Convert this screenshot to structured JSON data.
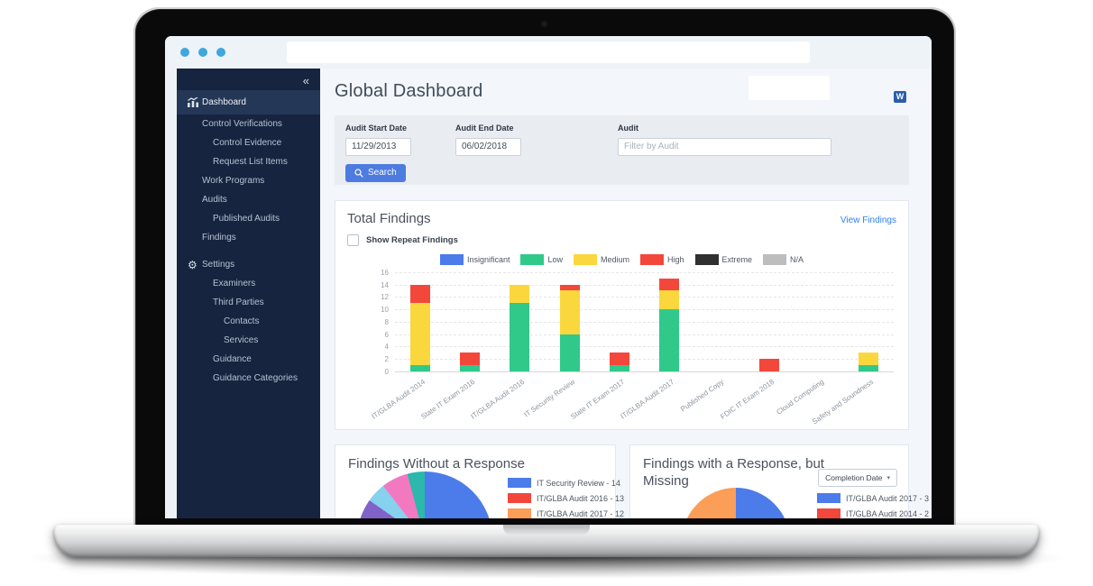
{
  "browser": {
    "address_text": ""
  },
  "sidebar": {
    "collapse_icon": "«",
    "items": [
      {
        "label": "Dashboard",
        "level": 0,
        "icon": "chart",
        "active": true
      },
      {
        "label": "Control Verifications",
        "level": 1
      },
      {
        "label": "Control Evidence",
        "level": 2
      },
      {
        "label": "Request List Items",
        "level": 2
      },
      {
        "label": "Work Programs",
        "level": 1
      },
      {
        "label": "Audits",
        "level": 1
      },
      {
        "label": "Published Audits",
        "level": 2
      },
      {
        "label": "Findings",
        "level": 1
      },
      {
        "label": "Settings",
        "level": 0,
        "icon": "gear",
        "gap": true
      },
      {
        "label": "Examiners",
        "level": 2
      },
      {
        "label": "Third Parties",
        "level": 2
      },
      {
        "label": "Contacts",
        "level": 3
      },
      {
        "label": "Services",
        "level": 3
      },
      {
        "label": "Guidance",
        "level": 2
      },
      {
        "label": "Guidance Categories",
        "level": 2
      }
    ]
  },
  "header": {
    "title": "Global Dashboard",
    "export_icon_label": "W"
  },
  "filters": {
    "start_date": {
      "label": "Audit Start Date",
      "value": "11/29/2013"
    },
    "end_date": {
      "label": "Audit End Date",
      "value": "06/02/2018"
    },
    "audit": {
      "label": "Audit",
      "placeholder": "Filter by Audit"
    },
    "search_label": "Search"
  },
  "total_findings_card": {
    "view_link": "View Findings",
    "show_repeat_label": "Show Repeat Findings"
  },
  "chart_data": [
    {
      "type": "bar",
      "stacked": true,
      "title": "Total Findings",
      "categories": [
        "IT/GLBA Audit 2014",
        "State IT Exam 2016",
        "IT/GLBA Audit 2016",
        "IT Security Review",
        "State IT Exam 2017",
        "IT/GLBA Audit 2017",
        "Published Copy",
        "FDIC IT Exam 2018",
        "Cloud Computing",
        "Safety and Soundness"
      ],
      "series": [
        {
          "name": "Insignificant",
          "color": "#4c7bea",
          "values": [
            0,
            0,
            0,
            0,
            0,
            0,
            0,
            0,
            0,
            0
          ]
        },
        {
          "name": "Low",
          "color": "#30c98a",
          "values": [
            1,
            1,
            11,
            6,
            1,
            10,
            0,
            0,
            0,
            1
          ]
        },
        {
          "name": "Medium",
          "color": "#fbd73e",
          "values": [
            10,
            0,
            3,
            7,
            0,
            3,
            0,
            0,
            0,
            2
          ]
        },
        {
          "name": "High",
          "color": "#f4473c",
          "values": [
            3,
            2,
            0,
            1,
            2,
            2,
            0,
            2,
            0,
            0
          ]
        },
        {
          "name": "Extreme",
          "color": "#303030",
          "values": [
            0,
            0,
            0,
            0,
            0,
            0,
            0,
            0,
            0,
            0
          ]
        },
        {
          "name": "N/A",
          "color": "#bdbdbd",
          "values": [
            0,
            0,
            0,
            0,
            0,
            0,
            0,
            0,
            0,
            0
          ]
        }
      ],
      "ylim": [
        0,
        16
      ],
      "ytick_step": 2,
      "grid": true,
      "legend_position": "top-center",
      "xlabel_rotation": -35
    },
    {
      "type": "pie",
      "title": "Findings Without a Response",
      "legend": [
        {
          "label": "IT Security Review - 14",
          "color": "#4c7bea"
        },
        {
          "label": "IT/GLBA Audit 2016 - 13",
          "color": "#f4473c"
        },
        {
          "label": "IT/GLBA Audit 2017 - 12",
          "color": "#fb9e57"
        }
      ],
      "segments": [
        {
          "name": "IT Security Review",
          "value": 14,
          "color": "#4c7bea",
          "deg": 170
        },
        {
          "name": "IT/GLBA Audit 2016",
          "value": 13,
          "color": "#f4473c",
          "deg": 55
        },
        {
          "name": "IT/GLBA Audit 2017",
          "value": 12,
          "color": "#fb9e57",
          "deg": 55
        },
        {
          "name": "",
          "color": "#8162c9",
          "deg": 25
        },
        {
          "name": "",
          "color": "#85d1ee",
          "deg": 17
        },
        {
          "name": "",
          "color": "#f279c0",
          "deg": 23
        },
        {
          "name": "",
          "color": "#2cb8ac",
          "deg": 15
        }
      ]
    },
    {
      "type": "pie",
      "title": "Findings with a Response, but Missing",
      "sort_dropdown": "Completion Date",
      "legend": [
        {
          "label": "IT/GLBA Audit 2017 - 3",
          "color": "#4c7bea"
        },
        {
          "label": "IT/GLBA Audit 2014 - 2",
          "color": "#f4473c"
        }
      ],
      "segments": [
        {
          "name": "IT/GLBA Audit 2017",
          "value": 3,
          "color": "#4c7bea",
          "deg": 130
        },
        {
          "name": "IT/GLBA Audit 2014",
          "value": 2,
          "color": "#f4473c",
          "deg": 50
        },
        {
          "name": "",
          "color": "#fb9e57",
          "deg": 180
        }
      ]
    }
  ]
}
